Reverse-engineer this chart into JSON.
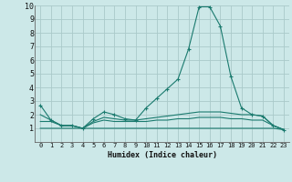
{
  "xlabel": "Humidex (Indice chaleur)",
  "background_color": "#cce8e8",
  "grid_color": "#aacaca",
  "line_color": "#1a7a6e",
  "xlim": [
    -0.5,
    23.5
  ],
  "ylim": [
    0,
    10
  ],
  "xticks": [
    0,
    1,
    2,
    3,
    4,
    5,
    6,
    7,
    8,
    9,
    10,
    11,
    12,
    13,
    14,
    15,
    16,
    17,
    18,
    19,
    20,
    21,
    22,
    23
  ],
  "yticks": [
    1,
    2,
    3,
    4,
    5,
    6,
    7,
    8,
    9,
    10
  ],
  "series": [
    {
      "x": [
        0,
        1,
        2,
        3,
        4,
        5,
        6,
        7,
        8,
        9,
        10,
        11,
        12,
        13,
        14,
        15,
        16,
        17,
        18,
        19,
        20,
        21,
        22,
        23
      ],
      "y": [
        2.7,
        1.6,
        1.2,
        1.2,
        1.0,
        1.7,
        2.2,
        2.0,
        1.7,
        1.6,
        2.5,
        3.2,
        3.9,
        4.6,
        6.8,
        9.9,
        9.9,
        8.5,
        4.8,
        2.5,
        2.0,
        1.9,
        1.2,
        0.9
      ],
      "marker": true
    },
    {
      "x": [
        0,
        1,
        2,
        3,
        4,
        5,
        6,
        7,
        8,
        9,
        10,
        11,
        12,
        13,
        14,
        15,
        16,
        17,
        18,
        19,
        20,
        21,
        22,
        23
      ],
      "y": [
        2.0,
        1.6,
        1.2,
        1.2,
        1.0,
        1.5,
        1.8,
        1.7,
        1.6,
        1.6,
        1.7,
        1.8,
        1.9,
        2.0,
        2.1,
        2.2,
        2.2,
        2.2,
        2.1,
        2.0,
        2.0,
        1.9,
        1.2,
        0.9
      ],
      "marker": false
    },
    {
      "x": [
        0,
        1,
        2,
        3,
        4,
        5,
        6,
        7,
        8,
        9,
        10,
        11,
        12,
        13,
        14,
        15,
        16,
        17,
        18,
        19,
        20,
        21,
        22,
        23
      ],
      "y": [
        1.0,
        1.0,
        1.0,
        1.0,
        1.0,
        1.0,
        1.0,
        1.0,
        1.0,
        1.0,
        1.0,
        1.0,
        1.0,
        1.0,
        1.0,
        1.0,
        1.0,
        1.0,
        1.0,
        1.0,
        1.0,
        1.0,
        1.0,
        0.9
      ],
      "marker": false
    },
    {
      "x": [
        0,
        1,
        2,
        3,
        4,
        5,
        6,
        7,
        8,
        9,
        10,
        11,
        12,
        13,
        14,
        15,
        16,
        17,
        18,
        19,
        20,
        21,
        22,
        23
      ],
      "y": [
        1.5,
        1.5,
        1.2,
        1.2,
        1.0,
        1.4,
        1.6,
        1.5,
        1.5,
        1.5,
        1.5,
        1.6,
        1.6,
        1.7,
        1.7,
        1.8,
        1.8,
        1.8,
        1.7,
        1.7,
        1.6,
        1.6,
        1.2,
        0.9
      ],
      "marker": false
    }
  ]
}
